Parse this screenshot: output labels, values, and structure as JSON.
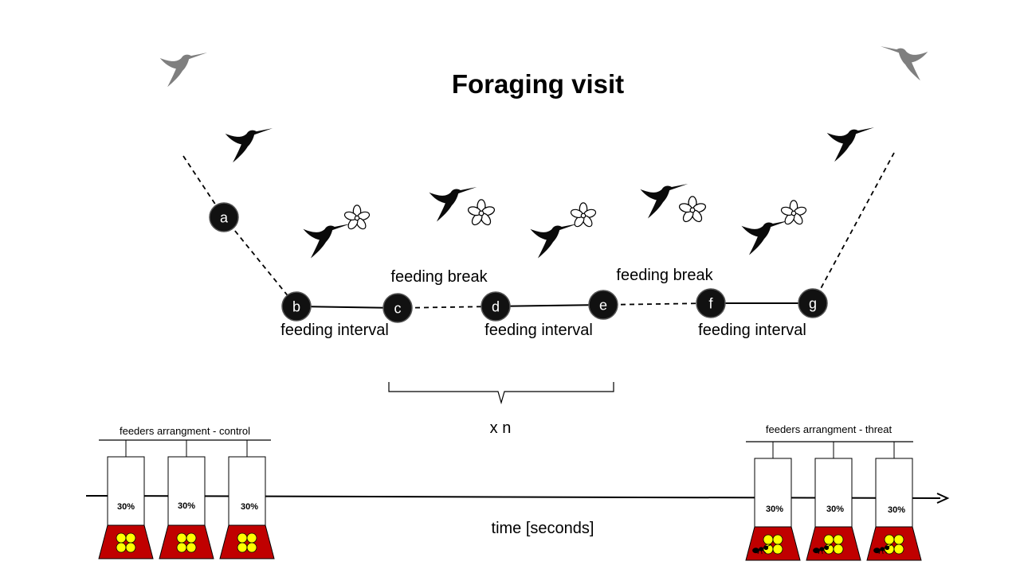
{
  "title": "Foraging visit",
  "nodes": [
    {
      "id": "a",
      "label": "a"
    },
    {
      "id": "b",
      "label": "b"
    },
    {
      "id": "c",
      "label": "c"
    },
    {
      "id": "d",
      "label": "d"
    },
    {
      "id": "e",
      "label": "e"
    },
    {
      "id": "f",
      "label": "f"
    },
    {
      "id": "g",
      "label": "g"
    }
  ],
  "segment_labels": {
    "feeding_interval_1": "feeding interval",
    "feeding_interval_2": "feeding interval",
    "feeding_interval_3": "feeding interval",
    "feeding_break_1": "feeding break",
    "feeding_break_2": "feeding break"
  },
  "repeat_label": "x n",
  "time_axis_label": "time [seconds]",
  "feeders_control": {
    "caption": "feeders arrangment - control",
    "feeders": [
      {
        "concentration": "30%"
      },
      {
        "concentration": "30%"
      },
      {
        "concentration": "30%"
      }
    ]
  },
  "feeders_threat": {
    "caption": "feeders arrangment - threat",
    "feeders": [
      {
        "concentration": "30%"
      },
      {
        "concentration": "30%"
      },
      {
        "concentration": "30%"
      }
    ]
  },
  "colors": {
    "node_fill": "#111111",
    "feeder_base": "#c00000",
    "flower": "#ffff00",
    "bird_black": "#0a0a0a",
    "bird_grey": "#7f7f7f"
  }
}
